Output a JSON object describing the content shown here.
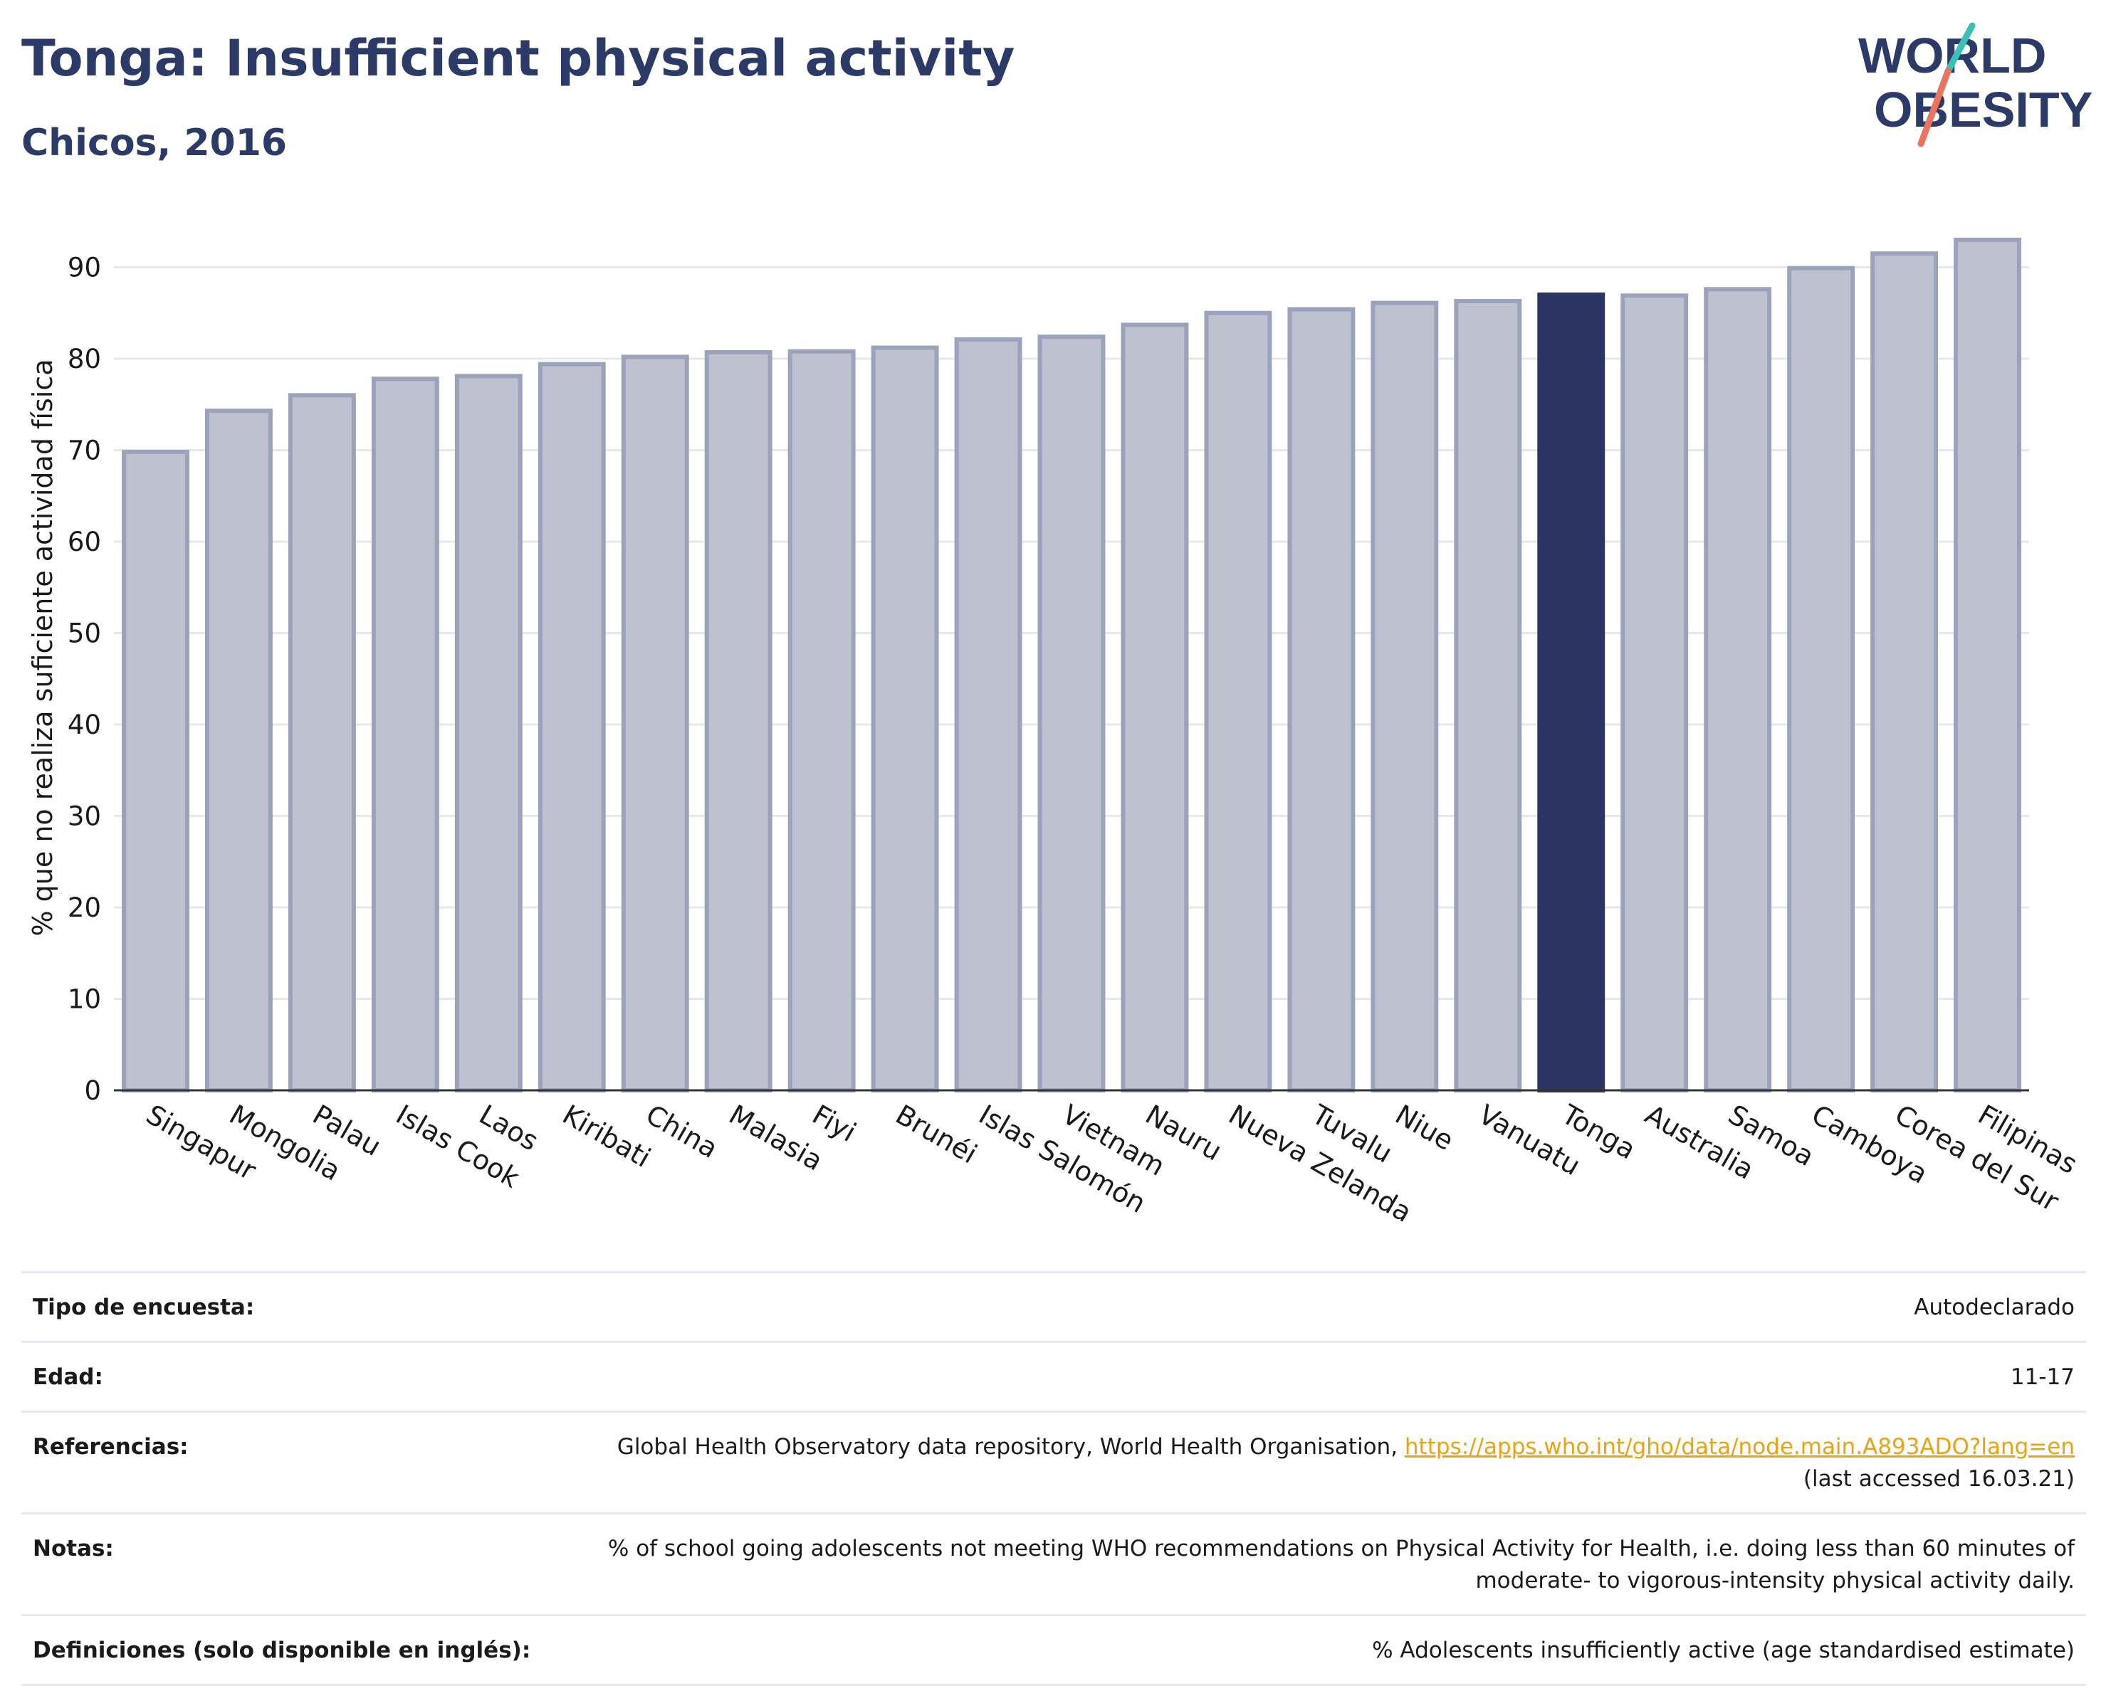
{
  "header": {
    "title": "Tonga: Insufficient physical activity",
    "subtitle": "Chicos, 2016"
  },
  "logo": {
    "line1": "WORLD",
    "line2": "OBESITY",
    "colors": {
      "text": "#2b3a67",
      "slash_top": "#3bbfb6",
      "slash_bottom": "#e9745f"
    }
  },
  "colors": {
    "bar_fill": "#bec2d0",
    "bar_stroke": "#9ba2bb",
    "highlight": "#2b3462",
    "title": "#2b3a67",
    "grid": "#e6e8ee",
    "link": "#e8a317"
  },
  "chart_data": {
    "type": "bar",
    "title": "Tonga: Insufficient physical activity",
    "ylabel": "% que no realiza suficiente actividad física",
    "xlabel": "",
    "ylim": [
      0,
      95
    ],
    "yticks": [
      0,
      10,
      20,
      30,
      40,
      50,
      60,
      70,
      80,
      90
    ],
    "grid": true,
    "highlight": "Tonga",
    "categories": [
      "Singapur",
      "Mongolia",
      "Palau",
      "Islas Cook",
      "Laos",
      "Kiribati",
      "China",
      "Malasia",
      "Fiyi",
      "Brunéi",
      "Islas Salomón",
      "Vietnam",
      "Nauru",
      "Nueva Zelanda",
      "Tuvalu",
      "Niue",
      "Vanuatu",
      "Tonga",
      "Australia",
      "Samoa",
      "Camboya",
      "Corea del Sur",
      "Filipinas"
    ],
    "values": [
      69.8,
      74.3,
      76.0,
      77.8,
      78.1,
      79.4,
      80.2,
      80.7,
      80.8,
      81.2,
      82.1,
      82.4,
      83.7,
      85.0,
      85.4,
      86.1,
      86.3,
      87.0,
      86.9,
      87.6,
      89.9,
      91.5,
      93.0
    ]
  },
  "info": {
    "survey_label": "Tipo de encuesta:",
    "survey_value": "Autodeclarado",
    "age_label": "Edad:",
    "age_value": "11-17",
    "refs_label": "Referencias:",
    "refs_text": "Global Health Observatory data repository, World Health Organisation, ",
    "refs_link": "https://apps.who.int/gho/data/node.main.A893ADO?lang=en",
    "refs_accessed": "(last accessed 16.03.21)",
    "notes_label": "Notas:",
    "notes_value": "% of school going adolescents not meeting WHO recommendations on Physical Activity for Health, i.e. doing less than 60 minutes of moderate- to vigorous-intensity physical activity daily.",
    "defs_label": "Definiciones (solo disponible en inglés):",
    "defs_value": "% Adolescents insufficiently active (age standardised estimate)"
  }
}
